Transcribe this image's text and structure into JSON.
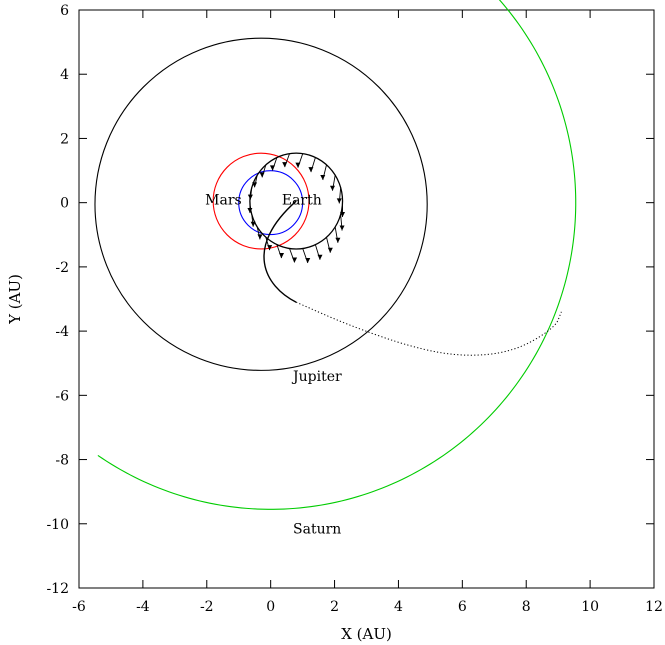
{
  "chart_data": {
    "type": "line",
    "title": "",
    "xlabel": "X (AU)",
    "ylabel": "Y (AU)",
    "xlim": [
      -6,
      12
    ],
    "ylim": [
      -12,
      6
    ],
    "x_ticks": [
      -6,
      -4,
      -2,
      0,
      2,
      4,
      6,
      8,
      10,
      12
    ],
    "y_ticks": [
      -12,
      -10,
      -8,
      -6,
      -4,
      -2,
      0,
      2,
      4,
      6
    ],
    "grid": false,
    "legend": "none",
    "colors": {
      "earth": "#0000ff",
      "mars": "#ff0000",
      "jupiter": "#000000",
      "saturn": "#00cc00",
      "trajectory": "#000000"
    },
    "orbits": [
      {
        "label": "Earth",
        "cx": 0,
        "cy": 0,
        "r": 1.0,
        "color": "#0000ff"
      },
      {
        "label": "Mars",
        "cx": -0.3,
        "cy": 0.05,
        "r": 1.5,
        "color": "#ff0000"
      },
      {
        "label": "Jupiter",
        "cx": -0.3,
        "cy": -0.05,
        "r": 5.2,
        "color": "#000000"
      }
    ],
    "saturn_arc": {
      "label": "Saturn",
      "cx": 0,
      "cy": 0,
      "r": 9.55,
      "start_deg": 45.5,
      "end_deg": 235,
      "color": "#00cc00"
    },
    "trajectory_loop": {
      "cx": 0.8,
      "cy": 0.05,
      "rx": 1.45,
      "ry": 1.5
    },
    "trajectory_tail": [
      [
        0.8,
        0.05
      ],
      [
        -0.85,
        -1.4
      ],
      [
        -0.2,
        -2.6
      ],
      [
        0.8,
        -3.1
      ]
    ],
    "trajectory_dotted": [
      [
        0.8,
        -3.1
      ],
      [
        2.4,
        -3.8
      ],
      [
        4.4,
        -4.5
      ],
      [
        6.0,
        -4.8
      ],
      [
        7.6,
        -4.65
      ],
      [
        8.9,
        -3.9
      ],
      [
        9.1,
        -3.4
      ]
    ],
    "labels": [
      {
        "text": "Mars",
        "x": -2.05,
        "y": -0.05
      },
      {
        "text": "Earth",
        "x": 0.35,
        "y": -0.05
      },
      {
        "text": "Jupiter",
        "x": 0.7,
        "y": -5.55
      },
      {
        "text": "Saturn",
        "x": 0.7,
        "y": -10.3
      }
    ]
  }
}
